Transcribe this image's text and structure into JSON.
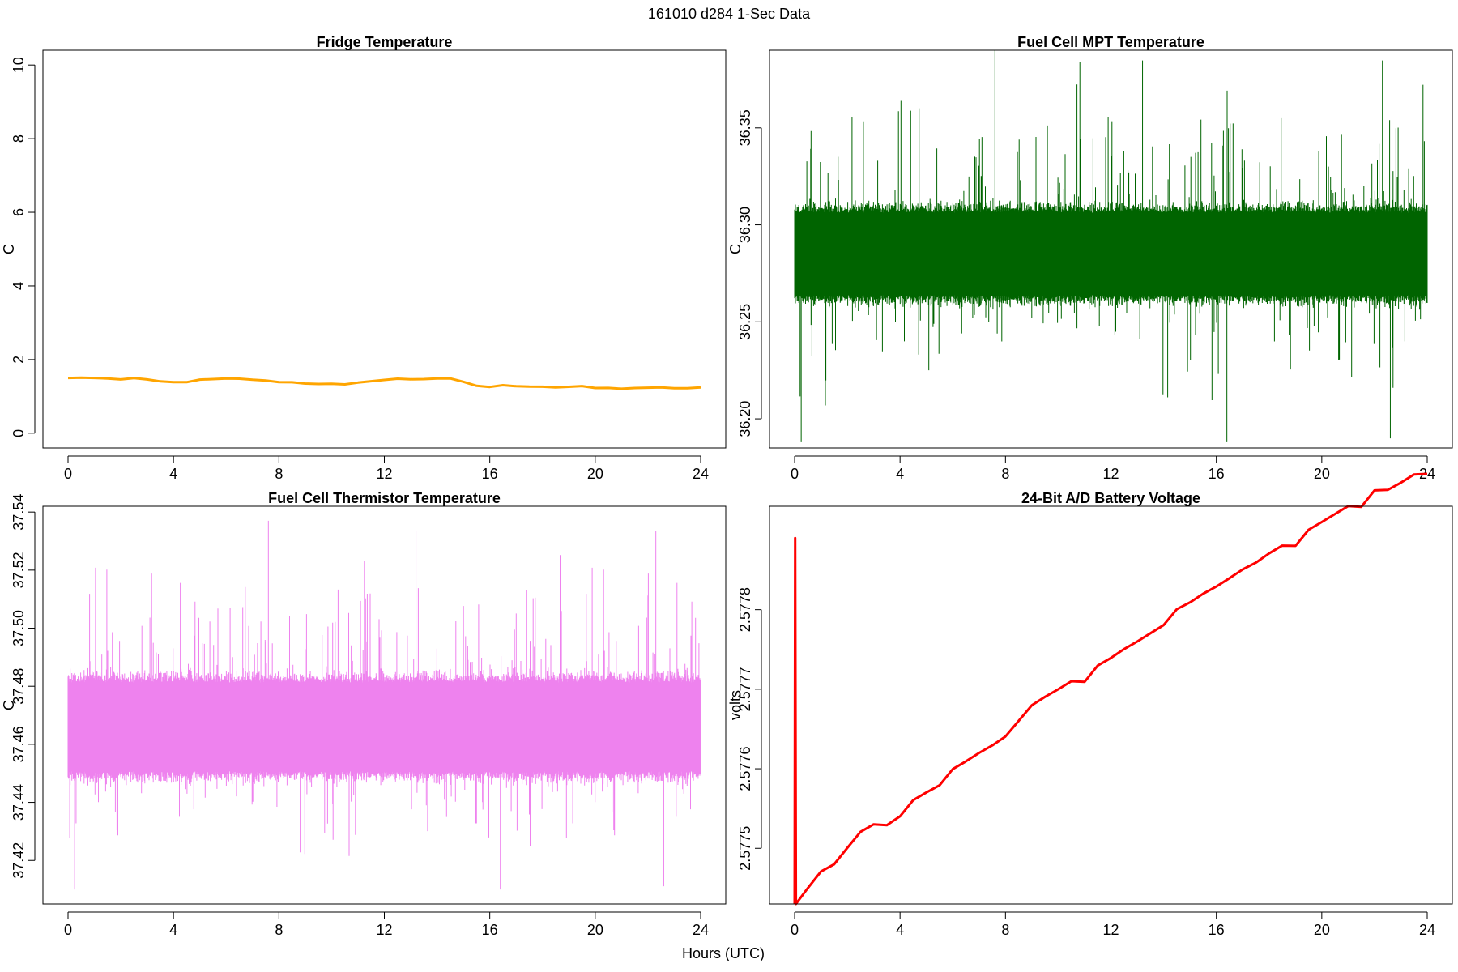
{
  "figure": {
    "title": "161010   d284   1-Sec Data",
    "xlabel": "Hours (UTC)"
  },
  "chart_data": [
    {
      "type": "line",
      "title": "Fridge Temperature",
      "ylabel": "C",
      "xlim": [
        0,
        24
      ],
      "ylim": [
        -0.4,
        10.4
      ],
      "xticks": [
        "0",
        "4",
        "8",
        "12",
        "16",
        "20",
        "24"
      ],
      "yticks": [
        "0",
        "2",
        "4",
        "6",
        "8",
        "10"
      ],
      "color": "#ffa500",
      "style": "line",
      "x": [
        0,
        0.5,
        1,
        1.5,
        2,
        2.5,
        3,
        3.5,
        4,
        4.5,
        5,
        5.5,
        6,
        6.5,
        7,
        7.5,
        8,
        8.5,
        9,
        9.5,
        10,
        10.5,
        11,
        11.5,
        12,
        12.5,
        13,
        13.5,
        14,
        14.5,
        15,
        15.5,
        16,
        16.5,
        17,
        17.5,
        18,
        18.5,
        19,
        19.5,
        20,
        20.5,
        21,
        21.5,
        22,
        22.5,
        23,
        23.5,
        24
      ],
      "y": [
        1.5,
        1.51,
        1.5,
        1.48,
        1.47,
        1.49,
        1.44,
        1.4,
        1.38,
        1.4,
        1.44,
        1.46,
        1.47,
        1.47,
        1.46,
        1.42,
        1.4,
        1.38,
        1.36,
        1.35,
        1.33,
        1.31,
        1.36,
        1.43,
        1.45,
        1.47,
        1.47,
        1.48,
        1.49,
        1.47,
        1.38,
        1.29,
        1.26,
        1.29,
        1.29,
        1.28,
        1.27,
        1.25,
        1.26,
        1.26,
        1.23,
        1.22,
        1.22,
        1.23,
        1.22,
        1.23,
        1.23,
        1.22,
        1.23
      ]
    },
    {
      "type": "line",
      "title": "Fuel Cell MPT Temperature",
      "ylabel": "C",
      "xlim": [
        0,
        24
      ],
      "ylim": [
        36.185,
        36.39
      ],
      "xticks": [
        "0",
        "4",
        "8",
        "12",
        "16",
        "20",
        "24"
      ],
      "ytick_values": [
        36.2,
        36.25,
        36.3,
        36.35
      ],
      "yticks": [
        "36.20",
        "36.25",
        "36.30",
        "36.35"
      ],
      "color": "#006400",
      "style": "noise",
      "center": 36.285,
      "core_half_width": 0.025,
      "spike_max": 36.39,
      "spike_min": 36.188
    },
    {
      "type": "line",
      "title": "Fuel Cell Thermistor Temperature",
      "ylabel": "C",
      "xlim": [
        0,
        24
      ],
      "ylim": [
        37.405,
        37.542
      ],
      "xticks": [
        "0",
        "4",
        "8",
        "12",
        "16",
        "20",
        "24"
      ],
      "ytick_values": [
        37.42,
        37.44,
        37.46,
        37.48,
        37.5,
        37.52,
        37.54
      ],
      "yticks": [
        "37.42",
        "37.44",
        "37.46",
        "37.48",
        "37.50",
        "37.52",
        "37.54"
      ],
      "color": "#ee82ee",
      "style": "noise",
      "center": 37.466,
      "core_half_width": 0.018,
      "spike_max": 37.537,
      "spike_min": 37.41
    },
    {
      "type": "line",
      "title": "24-Bit A/D Battery Voltage",
      "ylabel": "volts",
      "xlim": [
        0,
        24
      ],
      "ylim": [
        2.57743,
        2.57793
      ],
      "xticks": [
        "0",
        "4",
        "8",
        "12",
        "16",
        "20",
        "24"
      ],
      "ytick_values": [
        2.5775,
        2.5776,
        2.5777,
        2.5778
      ],
      "yticks": [
        "2.5775",
        "2.5776",
        "2.5777",
        "2.5778"
      ],
      "color": "#ff0000",
      "style": "line",
      "x": [
        0,
        0.02,
        0.05,
        0.5,
        1,
        1.5,
        2,
        2.5,
        3,
        3.5,
        4,
        4.5,
        5,
        5.5,
        6,
        6.5,
        7,
        7.5,
        8,
        8.5,
        9,
        9.5,
        10,
        10.5,
        11,
        11.5,
        12,
        12.5,
        13,
        13.5,
        14,
        14.5,
        15,
        15.5,
        16,
        16.5,
        17,
        17.5,
        18,
        18.5,
        19,
        19.5,
        20,
        20.5,
        21,
        21.5,
        22,
        22.5,
        23,
        23.5,
        24
      ],
      "y": [
        2.57743,
        2.57789,
        2.57743,
        2.57745,
        2.57747,
        2.57748,
        2.5775,
        2.57752,
        2.57753,
        2.57753,
        2.57754,
        2.57756,
        2.57757,
        2.57758,
        2.5776,
        2.57761,
        2.57762,
        2.57763,
        2.57764,
        2.57766,
        2.57768,
        2.57769,
        2.5777,
        2.57771,
        2.57771,
        2.57773,
        2.57774,
        2.57775,
        2.57776,
        2.57777,
        2.57778,
        2.5778,
        2.57781,
        2.57782,
        2.57783,
        2.57784,
        2.57785,
        2.57786,
        2.57787,
        2.57788,
        2.57788,
        2.5779,
        2.57791,
        2.57792,
        2.57793,
        2.57793,
        2.57795,
        2.57795,
        2.57796,
        2.57797,
        2.57797
      ]
    }
  ]
}
